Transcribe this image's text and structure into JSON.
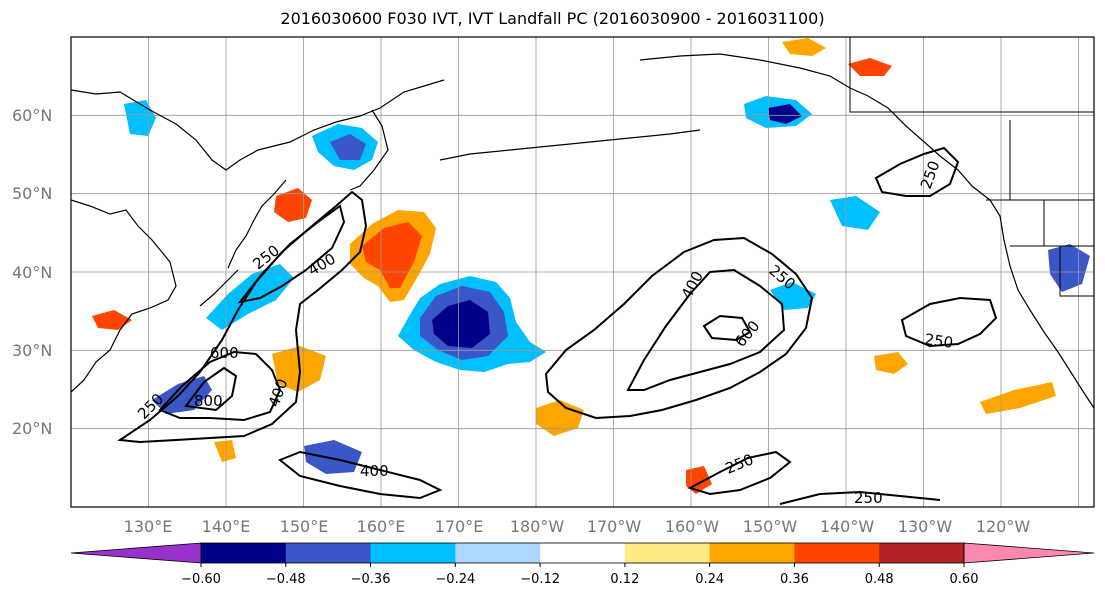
{
  "title": "2016030600 F030 IVT, IVT Landfall PC (2016030900 - 2016031100)",
  "lat_labels": [
    "60°N",
    "50°N",
    "40°N",
    "30°N",
    "20°N"
  ],
  "lon_labels": [
    "130°E",
    "140°E",
    "150°E",
    "160°E",
    "170°E",
    "180°W",
    "170°W",
    "160°W",
    "150°W",
    "140°W",
    "130°W",
    "120°W"
  ],
  "map_extent": {
    "lon_min": 120,
    "lon_max": 252,
    "lat_min": 10,
    "lat_max": 70
  },
  "colorbar": {
    "ticks": [
      "−0.60",
      "−0.48",
      "−0.36",
      "−0.24",
      "−0.12",
      "0.12",
      "0.24",
      "0.36",
      "0.48",
      "0.60"
    ],
    "colors": [
      "#9932cc",
      "#00008b",
      "#3a57c8",
      "#00bfff",
      "#add8ff",
      "#ffffff",
      "#ffe980",
      "#ffa500",
      "#ff4500",
      "#b22222",
      "#ff88b0"
    ]
  },
  "contour_labels": {
    "c250_west": "250",
    "c400_west": "400",
    "c600_south": "600",
    "c800": "800",
    "c400_south": "400",
    "c400_bottom": "400",
    "c400_central": "400",
    "c250_central": "250",
    "c600_central": "600",
    "c250_east": "250",
    "c250_south": "250",
    "c250_bottom": "250",
    "c250_coast": "250",
    "c250_fragment": "250"
  }
}
